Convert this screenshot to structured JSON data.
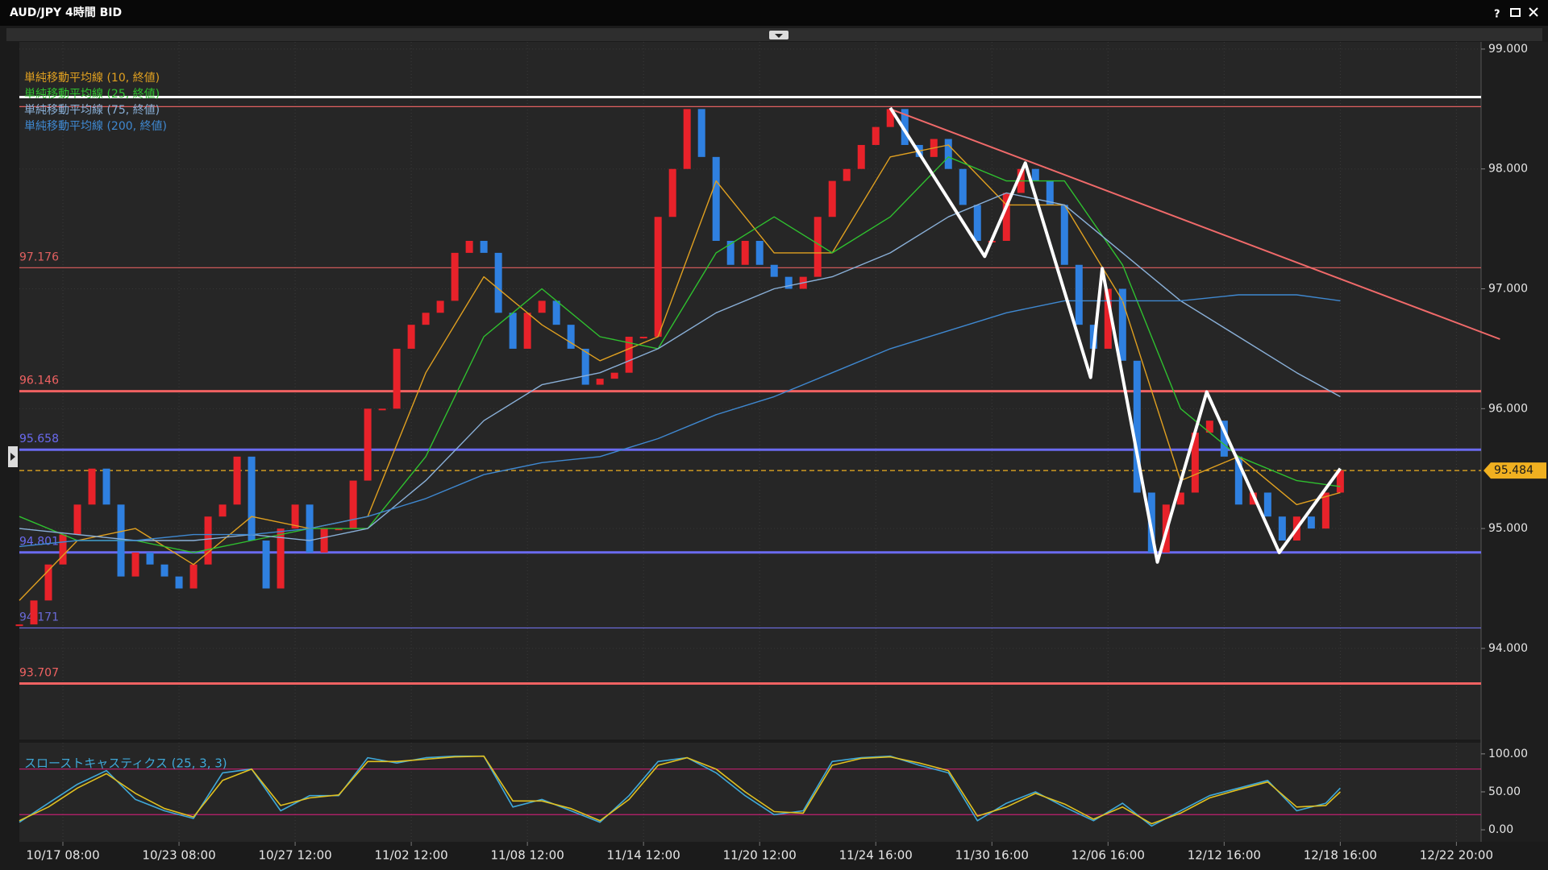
{
  "window": {
    "title": "AUD/JPY 4時間 BID"
  },
  "chart_data": [
    {
      "type": "candlestick",
      "values": [
        94.2,
        94.4,
        94.7,
        94.95,
        95.2,
        95.5,
        95.2,
        94.6,
        94.8,
        94.7,
        94.6,
        94.5,
        94.7,
        95.1,
        95.2,
        95.6,
        94.9,
        94.5,
        95.0,
        95.2,
        94.8,
        95.0,
        95.0,
        95.4,
        96.0,
        96.0,
        96.5,
        96.7,
        96.8,
        96.9,
        97.3,
        97.4,
        97.3,
        96.8,
        96.5,
        96.8,
        96.9,
        96.7,
        96.5,
        96.2,
        96.25,
        96.3,
        96.6,
        96.6,
        97.6,
        98.0,
        98.5,
        98.1,
        97.4,
        97.2,
        97.4,
        97.2,
        97.1,
        97.0,
        97.1,
        97.6,
        97.9,
        98.0,
        98.2,
        98.35,
        98.5,
        98.2,
        98.1,
        98.25,
        98.0,
        97.7,
        97.4,
        97.4,
        97.8,
        98.0,
        97.9,
        97.7,
        97.2,
        96.7,
        96.5,
        97.0,
        96.4,
        95.3,
        94.8,
        95.2,
        95.3,
        95.8,
        95.9,
        95.6,
        95.2,
        95.3,
        95.1,
        94.9,
        95.1,
        95.0,
        95.3,
        95.484
      ],
      "up_color": "#e8222a",
      "down_color": "#2f80e0",
      "series": [
        {
          "name": "単純移動平均線 (10, 終値)",
          "color": "#e0a020",
          "x": [
            0,
            4,
            8,
            12,
            16,
            20,
            24,
            28,
            32,
            36,
            40,
            44,
            48,
            52,
            56,
            60,
            64,
            68,
            72,
            76,
            80,
            84,
            88,
            91
          ],
          "values": [
            94.4,
            94.9,
            95.0,
            94.7,
            95.1,
            95.0,
            95.1,
            96.3,
            97.1,
            96.7,
            96.4,
            96.6,
            97.9,
            97.3,
            97.3,
            98.1,
            98.2,
            97.7,
            97.7,
            96.9,
            95.4,
            95.6,
            95.2,
            95.3
          ]
        },
        {
          "name": "単純移動平均線 (25, 終値)",
          "color": "#2fc02f",
          "x": [
            0,
            4,
            8,
            12,
            16,
            20,
            24,
            28,
            32,
            36,
            40,
            44,
            48,
            52,
            56,
            60,
            64,
            68,
            72,
            76,
            80,
            84,
            88,
            91
          ],
          "values": [
            95.1,
            94.9,
            94.9,
            94.8,
            94.9,
            95.0,
            95.0,
            95.6,
            96.6,
            97.0,
            96.6,
            96.5,
            97.3,
            97.6,
            97.3,
            97.6,
            98.1,
            97.9,
            97.9,
            97.2,
            96.0,
            95.6,
            95.4,
            95.35
          ]
        },
        {
          "name": "単純移動平均線 (75, 終値)",
          "color": "#8ab0d8",
          "x": [
            0,
            4,
            8,
            12,
            16,
            20,
            24,
            28,
            32,
            36,
            40,
            44,
            48,
            52,
            56,
            60,
            64,
            68,
            72,
            76,
            80,
            84,
            88,
            91
          ],
          "values": [
            95.0,
            94.95,
            94.9,
            94.9,
            94.95,
            94.9,
            95.0,
            95.4,
            95.9,
            96.2,
            96.3,
            96.5,
            96.8,
            97.0,
            97.1,
            97.3,
            97.6,
            97.8,
            97.7,
            97.3,
            96.9,
            96.6,
            96.3,
            96.1
          ]
        },
        {
          "name": "単純移動平均線 (200, 終値)",
          "color": "#3f88d0",
          "x": [
            0,
            4,
            8,
            12,
            16,
            20,
            24,
            28,
            32,
            36,
            40,
            44,
            48,
            52,
            56,
            60,
            64,
            68,
            72,
            76,
            80,
            84,
            88,
            91
          ],
          "values": [
            94.85,
            94.9,
            94.9,
            94.95,
            94.95,
            95.0,
            95.1,
            95.25,
            95.45,
            95.55,
            95.6,
            95.75,
            95.95,
            96.1,
            96.3,
            96.5,
            96.65,
            96.8,
            96.9,
            96.9,
            96.9,
            96.95,
            96.95,
            96.9
          ]
        }
      ],
      "levels": [
        {
          "value": 97.176,
          "color": "#e06060",
          "weight": "thin"
        },
        {
          "value": 96.146,
          "color": "#f06262",
          "weight": "thick"
        },
        {
          "value": 95.658,
          "color": "#6a6af0",
          "weight": "thick"
        },
        {
          "value": 94.801,
          "color": "#6a6af0",
          "weight": "thick"
        },
        {
          "value": 94.171,
          "color": "#6a6ad8",
          "weight": "thin"
        },
        {
          "value": 93.707,
          "color": "#f06262",
          "weight": "thick"
        }
      ],
      "top_lines": [
        {
          "value": 98.6,
          "color": "#ffffff",
          "weight": "thick"
        },
        {
          "value": 98.52,
          "color": "#e06060",
          "weight": "thin"
        }
      ],
      "last": 95.484,
      "last_color": "#f0b020",
      "trendline": {
        "color": "#f06a6a",
        "x": [
          60,
          102
        ],
        "values": [
          98.5,
          96.58
        ]
      },
      "zigzag": {
        "color": "#ffffff",
        "x": [
          60,
          66.5,
          69.3,
          73.8,
          74.6,
          78.4,
          81.8,
          86.8,
          91
        ],
        "values": [
          98.51,
          97.27,
          98.05,
          96.26,
          97.17,
          94.72,
          96.14,
          94.8,
          95.5
        ]
      },
      "xlim": [
        0,
        100.7
      ],
      "xticks": [
        {
          "value": 3,
          "label": "10/17 08:00"
        },
        {
          "value": 11,
          "label": "10/23 08:00"
        },
        {
          "value": 19,
          "label": "10/27 12:00"
        },
        {
          "value": 27,
          "label": "11/02 12:00"
        },
        {
          "value": 35,
          "label": "11/08 12:00"
        },
        {
          "value": 43,
          "label": "11/14 12:00"
        },
        {
          "value": 51,
          "label": "11/20 12:00"
        },
        {
          "value": 59,
          "label": "11/24 16:00"
        },
        {
          "value": 67,
          "label": "11/30 16:00"
        },
        {
          "value": 75,
          "label": "12/06 16:00"
        },
        {
          "value": 83,
          "label": "12/12 16:00"
        },
        {
          "value": 91,
          "label": "12/18 16:00"
        },
        {
          "value": 99,
          "label": "12/22 20:00"
        }
      ],
      "ylim": [
        93.24,
        99.06
      ],
      "yticks": [
        {
          "value": 94,
          "label": "94.000"
        },
        {
          "value": 95,
          "label": "95.000"
        },
        {
          "value": 96,
          "label": "96.000"
        },
        {
          "value": 97,
          "label": "97.000"
        },
        {
          "value": 98,
          "label": "98.000"
        },
        {
          "value": 99,
          "label": "99.000"
        }
      ],
      "grid": true
    },
    {
      "type": "line",
      "title": "スローストキャスティクス (25, 3, 3)",
      "title_color": "#3fa8d8",
      "series": [
        {
          "color": "#3fa8d8",
          "x": [
            0,
            2,
            4,
            6,
            8,
            10,
            12,
            14,
            16,
            18,
            20,
            22,
            24,
            26,
            28,
            30,
            32,
            34,
            36,
            38,
            40,
            42,
            44,
            46,
            48,
            50,
            52,
            54,
            56,
            58,
            60,
            62,
            64,
            66,
            68,
            70,
            72,
            74,
            76,
            78,
            80,
            82,
            84,
            86,
            88,
            90,
            91
          ],
          "values": [
            10,
            35,
            60,
            78,
            40,
            25,
            15,
            75,
            80,
            25,
            45,
            45,
            95,
            88,
            95,
            97,
            97,
            30,
            40,
            25,
            10,
            45,
            90,
            95,
            75,
            45,
            20,
            25,
            90,
            95,
            97,
            85,
            75,
            12,
            35,
            50,
            30,
            12,
            35,
            5,
            25,
            45,
            55,
            65,
            25,
            35,
            55
          ]
        },
        {
          "color": "#e0c020",
          "x": [
            0,
            2,
            4,
            6,
            8,
            10,
            12,
            14,
            16,
            18,
            20,
            22,
            24,
            26,
            28,
            30,
            32,
            34,
            36,
            38,
            40,
            42,
            44,
            46,
            48,
            50,
            52,
            54,
            56,
            58,
            60,
            62,
            64,
            66,
            68,
            70,
            72,
            74,
            76,
            78,
            80,
            82,
            84,
            86,
            88,
            90,
            91
          ],
          "values": [
            12,
            30,
            55,
            74,
            48,
            28,
            17,
            65,
            80,
            32,
            42,
            46,
            90,
            90,
            93,
            96,
            97,
            38,
            38,
            28,
            12,
            40,
            85,
            95,
            80,
            50,
            24,
            22,
            85,
            94,
            96,
            88,
            78,
            18,
            30,
            48,
            34,
            14,
            30,
            8,
            22,
            42,
            53,
            63,
            30,
            32,
            50
          ]
        }
      ],
      "levels": [
        {
          "value": 80,
          "color": "#c02070"
        },
        {
          "value": 20,
          "color": "#c02070"
        }
      ],
      "ylim": [
        -15.8,
        114.7
      ],
      "yticks": [
        {
          "value": 0,
          "label": "0.00"
        },
        {
          "value": 50,
          "label": "50.00"
        },
        {
          "value": 100,
          "label": "100.00"
        }
      ],
      "grid": true
    }
  ]
}
